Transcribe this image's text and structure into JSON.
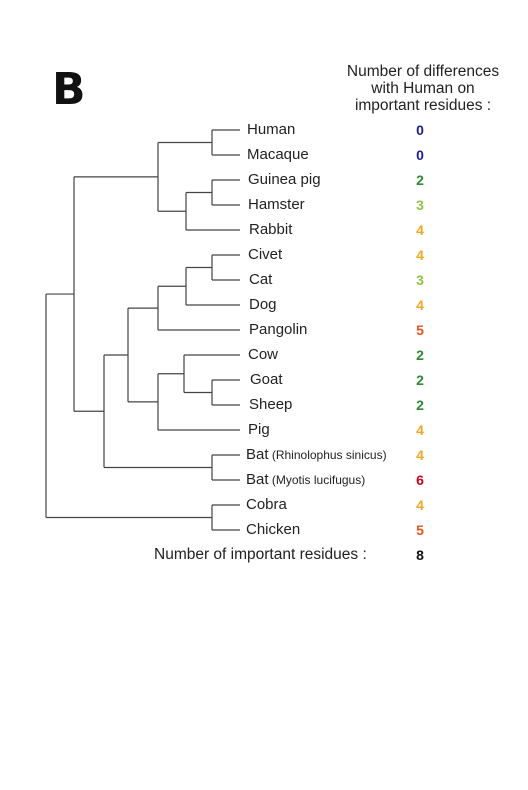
{
  "panel_letter": "B",
  "header": {
    "line1": "Number of differences",
    "line2": "with Human on",
    "line3": "important residues :"
  },
  "colors": {
    "0": "#1c1c9c",
    "2": "#2e8b2e",
    "3": "#8cc63f",
    "4": "#f5a623",
    "5": "#e8531e",
    "6": "#d0021b",
    "line": "#444444"
  },
  "species": [
    {
      "name": "Human",
      "detail": "",
      "diff": "0"
    },
    {
      "name": "Macaque",
      "detail": "",
      "diff": "0"
    },
    {
      "name": "Guinea pig",
      "detail": "",
      "diff": "2"
    },
    {
      "name": "Hamster",
      "detail": "",
      "diff": "3"
    },
    {
      "name": "Rabbit",
      "detail": "",
      "diff": "4"
    },
    {
      "name": "Civet",
      "detail": "",
      "diff": "4"
    },
    {
      "name": "Cat",
      "detail": "",
      "diff": "3"
    },
    {
      "name": "Dog",
      "detail": "",
      "diff": "4"
    },
    {
      "name": "Pangolin",
      "detail": "",
      "diff": "5"
    },
    {
      "name": "Cow",
      "detail": "",
      "diff": "2"
    },
    {
      "name": "Goat",
      "detail": "",
      "diff": "2"
    },
    {
      "name": "Sheep",
      "detail": "",
      "diff": "2"
    },
    {
      "name": "Pig",
      "detail": "",
      "diff": "4"
    },
    {
      "name": "Bat",
      "detail": "(Rhinolophus sinicus)",
      "diff": "4"
    },
    {
      "name": "Bat",
      "detail": "(Myotis lucifugus)",
      "diff": "6"
    },
    {
      "name": "Cobra",
      "detail": "",
      "diff": "4"
    },
    {
      "name": "Chicken",
      "detail": "",
      "diff": "5"
    }
  ],
  "footer": {
    "label": "Number of important residues :",
    "value": "8"
  }
}
